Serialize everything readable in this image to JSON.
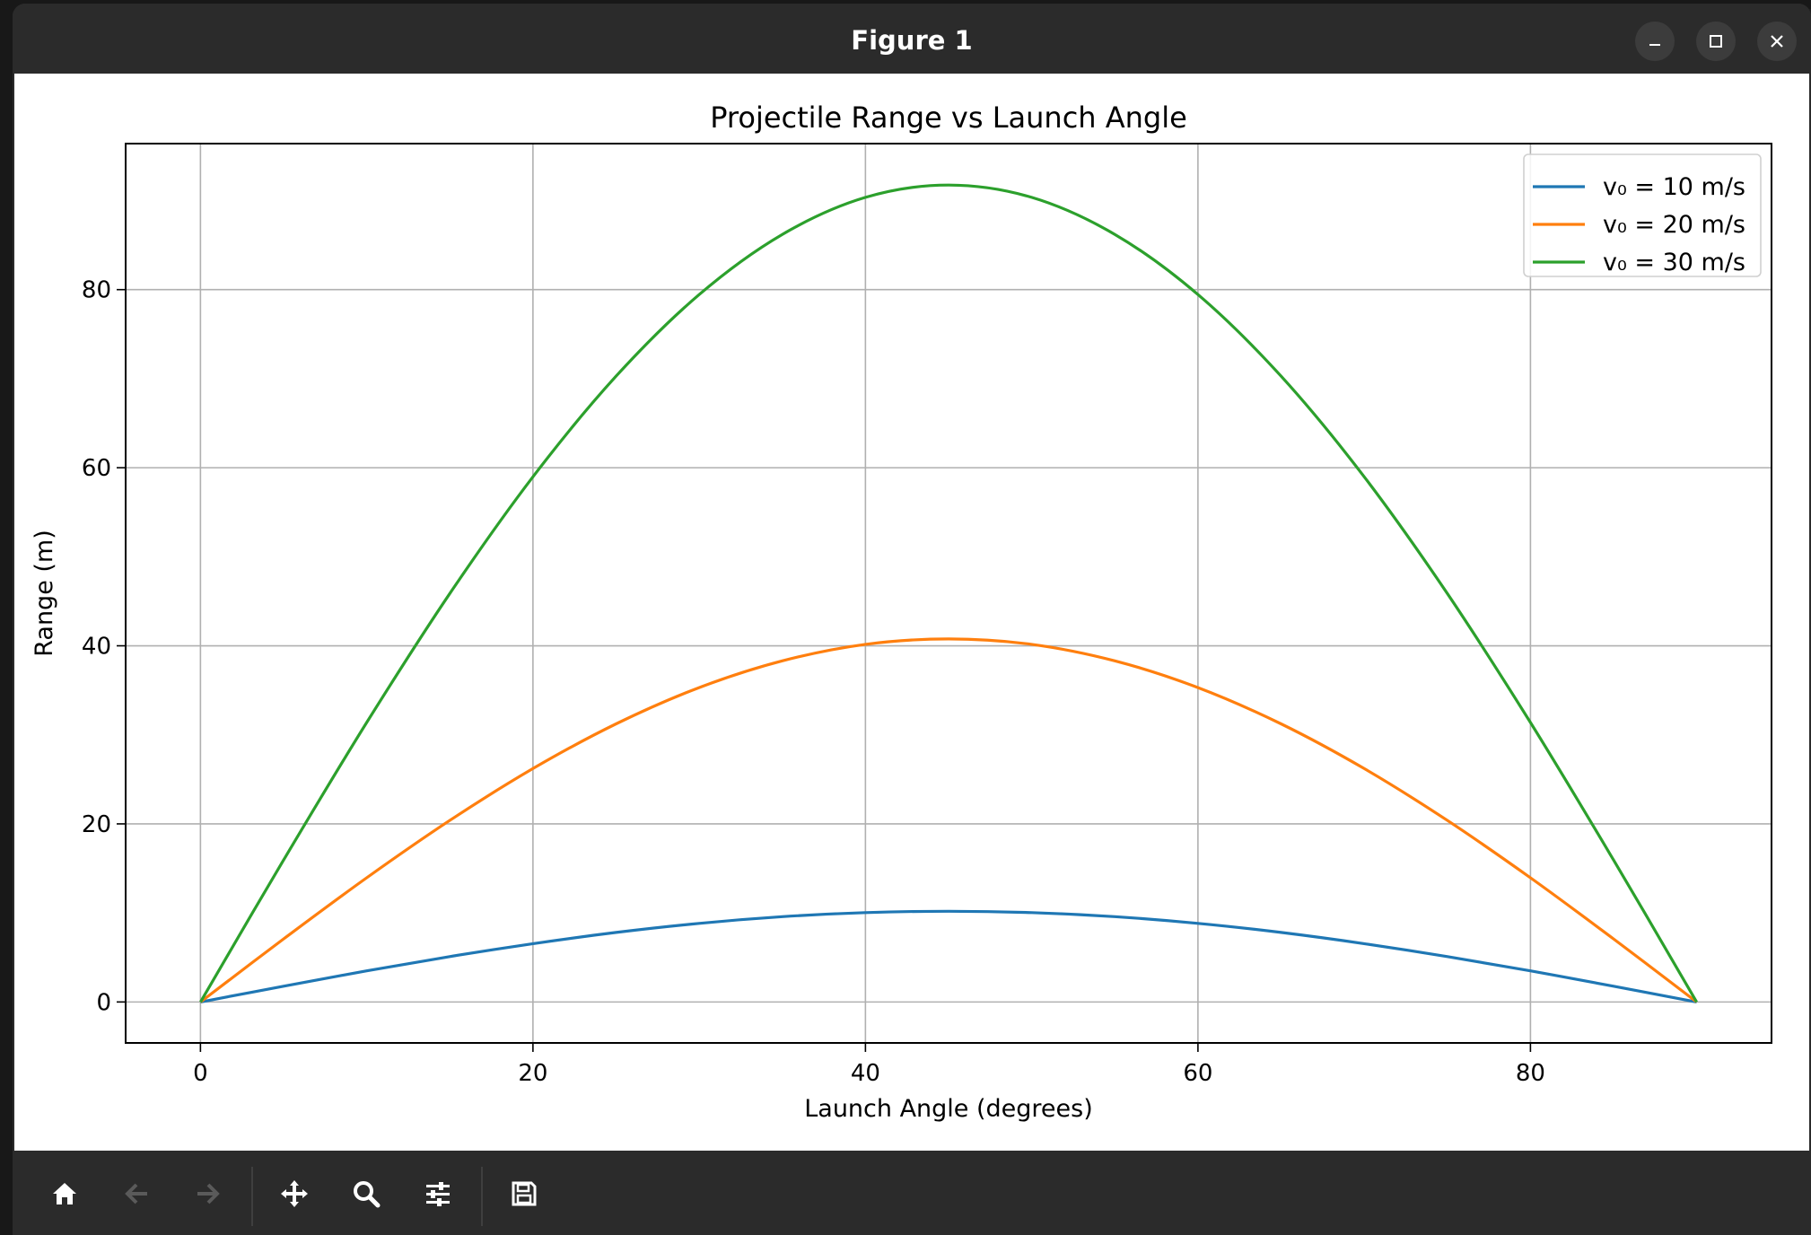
{
  "window": {
    "title": "Figure 1"
  },
  "toolbar": {
    "buttons": [
      {
        "name": "home-button",
        "icon": "home-icon"
      },
      {
        "name": "back-button",
        "icon": "arrow-left-icon"
      },
      {
        "name": "forward-button",
        "icon": "arrow-right-icon"
      },
      {
        "name": "pan-button",
        "icon": "move-icon"
      },
      {
        "name": "zoom-button",
        "icon": "search-icon"
      },
      {
        "name": "configure-subplots-button",
        "icon": "sliders-icon"
      },
      {
        "name": "save-button",
        "icon": "save-icon"
      }
    ]
  },
  "colors": {
    "series_10": "#1f77b4",
    "series_20": "#ff7f0e",
    "series_30": "#2ca02c",
    "grid": "#b0b0b0"
  },
  "chart_data": {
    "type": "line",
    "title": "Projectile Range vs Launch Angle",
    "xlabel": "Launch Angle (degrees)",
    "ylabel": "Range (m)",
    "xlim": [
      -4.5,
      94.5
    ],
    "ylim": [
      -4.6,
      96.4
    ],
    "xticks": [
      0,
      20,
      40,
      60,
      80
    ],
    "yticks": [
      0,
      20,
      40,
      60,
      80
    ],
    "xtick_labels": [
      "0",
      "20",
      "40",
      "60",
      "80"
    ],
    "ytick_labels": [
      "0",
      "20",
      "40",
      "60",
      "80"
    ],
    "grid": true,
    "legend_position": "top-right",
    "x": [
      0,
      5,
      10,
      15,
      20,
      25,
      30,
      35,
      40,
      45,
      50,
      55,
      60,
      65,
      70,
      75,
      80,
      85,
      90
    ],
    "series": [
      {
        "name": "v₀ = 10 m/s",
        "color": "#1f77b4",
        "values": [
          0,
          1.77,
          3.49,
          5.1,
          6.55,
          7.81,
          8.83,
          9.58,
          10.04,
          10.19,
          10.04,
          9.58,
          8.83,
          7.81,
          6.55,
          5.1,
          3.49,
          1.77,
          0
        ]
      },
      {
        "name": "v₀ = 20 m/s",
        "color": "#ff7f0e",
        "values": [
          0,
          7.08,
          13.95,
          20.39,
          26.21,
          31.23,
          35.31,
          38.31,
          40.16,
          40.77,
          40.16,
          38.31,
          35.31,
          31.23,
          26.21,
          20.39,
          13.95,
          7.08,
          0
        ]
      },
      {
        "name": "v₀ = 30 m/s",
        "color": "#2ca02c",
        "values": [
          0,
          15.94,
          31.38,
          45.87,
          58.98,
          70.28,
          79.45,
          86.2,
          90.36,
          91.74,
          90.36,
          86.2,
          79.45,
          70.28,
          58.98,
          45.87,
          31.38,
          15.94,
          0
        ]
      }
    ]
  }
}
